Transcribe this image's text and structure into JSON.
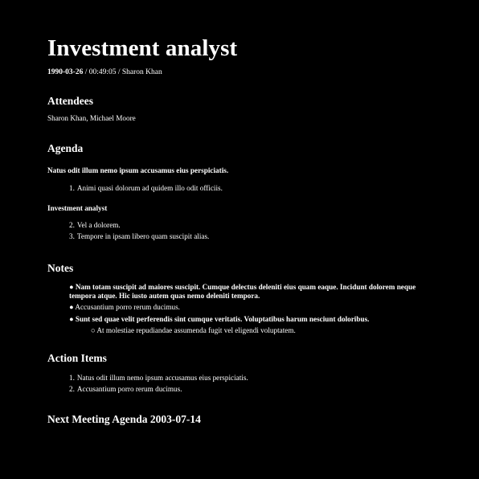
{
  "title": "Investment analyst",
  "meta": {
    "date": "1990-03-26",
    "rest": " / 00:49:05 / Sharon Khan"
  },
  "attendees": {
    "heading": "Attendees",
    "names": "Sharon Khan, Michael Moore"
  },
  "agenda": {
    "heading": "Agenda",
    "group1_title": "Natus odit illum nemo ipsum accusamus eius perspiciatis.",
    "group1_items": [
      {
        "num": "1.",
        "text": "Animi quasi dolorum ad quidem illo odit officiis."
      }
    ],
    "group2_title": "Investment analyst",
    "group2_items": [
      {
        "num": "2.",
        "text": "Vel a dolorem."
      },
      {
        "num": "3.",
        "text": "Tempore in ipsam libero quam suscipit alias."
      }
    ]
  },
  "notes": {
    "heading": "Notes",
    "items": [
      "● Nam totam suscipit ad maiores suscipit. Cumque delectus deleniti eius quam eaque. Incidunt dolorem neque tempora atque. Hic iusto autem quas nemo deleniti tempora.",
      "● Accusantium porro rerum ducimus.",
      "● Sunt sed quae velit perferendis sint cumque veritatis. Voluptatibus harum nesciunt doloribus."
    ],
    "sub_item": "○ At molestiae repudiandae assumenda fugit vel eligendi voluptatem."
  },
  "action_items": {
    "heading": "Action Items",
    "items": [
      {
        "num": "1.",
        "text": "Natus odit illum nemo ipsum accusamus eius perspiciatis."
      },
      {
        "num": "2.",
        "text": "Accusantium porro rerum ducimus."
      }
    ]
  },
  "next_meeting": {
    "heading": "Next Meeting Agenda 2003-07-14"
  }
}
